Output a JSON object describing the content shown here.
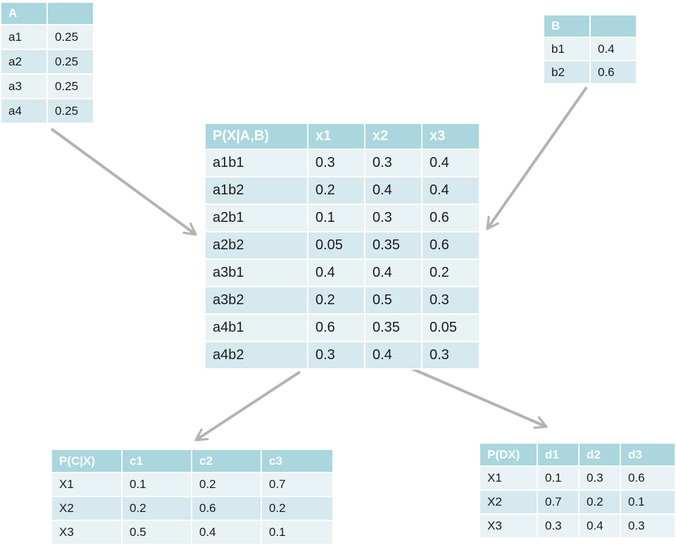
{
  "tables": {
    "a": {
      "headers": [
        "A",
        ""
      ],
      "rows": [
        [
          "a1",
          "0.25"
        ],
        [
          "a2",
          "0.25"
        ],
        [
          "a3",
          "0.25"
        ],
        [
          "a4",
          "0.25"
        ]
      ]
    },
    "b": {
      "headers": [
        "B",
        ""
      ],
      "rows": [
        [
          "b1",
          "0.4"
        ],
        [
          "b2",
          "0.6"
        ]
      ]
    },
    "x": {
      "headers": [
        "P(X|A,B)",
        "x1",
        "x2",
        "x3"
      ],
      "rows": [
        [
          "a1b1",
          "0.3",
          "0.3",
          "0.4"
        ],
        [
          "a1b2",
          "0.2",
          "0.4",
          "0.4"
        ],
        [
          "a2b1",
          "0.1",
          "0.3",
          "0.6"
        ],
        [
          "a2b2",
          "0.05",
          "0.35",
          "0.6"
        ],
        [
          "a3b1",
          "0.4",
          "0.4",
          "0.2"
        ],
        [
          "a3b2",
          "0.2",
          "0.5",
          "0.3"
        ],
        [
          "a4b1",
          "0.6",
          "0.35",
          "0.05"
        ],
        [
          "a4b2",
          "0.3",
          "0.4",
          "0.3"
        ]
      ]
    },
    "c": {
      "headers": [
        "P(C|X)",
        "c1",
        "c2",
        "c3"
      ],
      "rows": [
        [
          "X1",
          "0.1",
          "0.2",
          "0.7"
        ],
        [
          "X2",
          "0.2",
          "0.6",
          "0.2"
        ],
        [
          "X3",
          "0.5",
          "0.4",
          "0.1"
        ]
      ]
    },
    "d": {
      "headers": [
        "P(DX)",
        "d1",
        "d2",
        "d3"
      ],
      "rows": [
        [
          "X1",
          "0.1",
          "0.3",
          "0.6"
        ],
        [
          "X2",
          "0.7",
          "0.2",
          "0.1"
        ],
        [
          "X3",
          "0.3",
          "0.4",
          "0.3"
        ]
      ]
    }
  },
  "colors": {
    "header_bg": "#a9d7dd",
    "row_dark": "#d6e9ee",
    "row_light": "#e9f2f4",
    "arrow": "#b3b3b3"
  }
}
